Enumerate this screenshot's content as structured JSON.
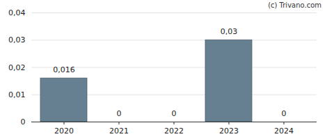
{
  "chart_data": {
    "type": "bar",
    "caption": "(c) Trivano.com",
    "categories": [
      "2020",
      "2021",
      "2022",
      "2023",
      "2024"
    ],
    "values": [
      0.016,
      0,
      0,
      0.03,
      0
    ],
    "value_labels": [
      "0,016",
      "0",
      "0",
      "0,03",
      "0"
    ],
    "color": "#667f91",
    "ylim": [
      0,
      0.04
    ],
    "yticks": [
      0,
      {
        "value": 0.01,
        "label": "0,01"
      },
      {
        "value": 0.02,
        "label": "0,02"
      },
      {
        "value": 0.03,
        "label": "0,03"
      },
      {
        "value": 0.04,
        "label": "0,04"
      }
    ],
    "grid": true,
    "data_labels": true
  }
}
